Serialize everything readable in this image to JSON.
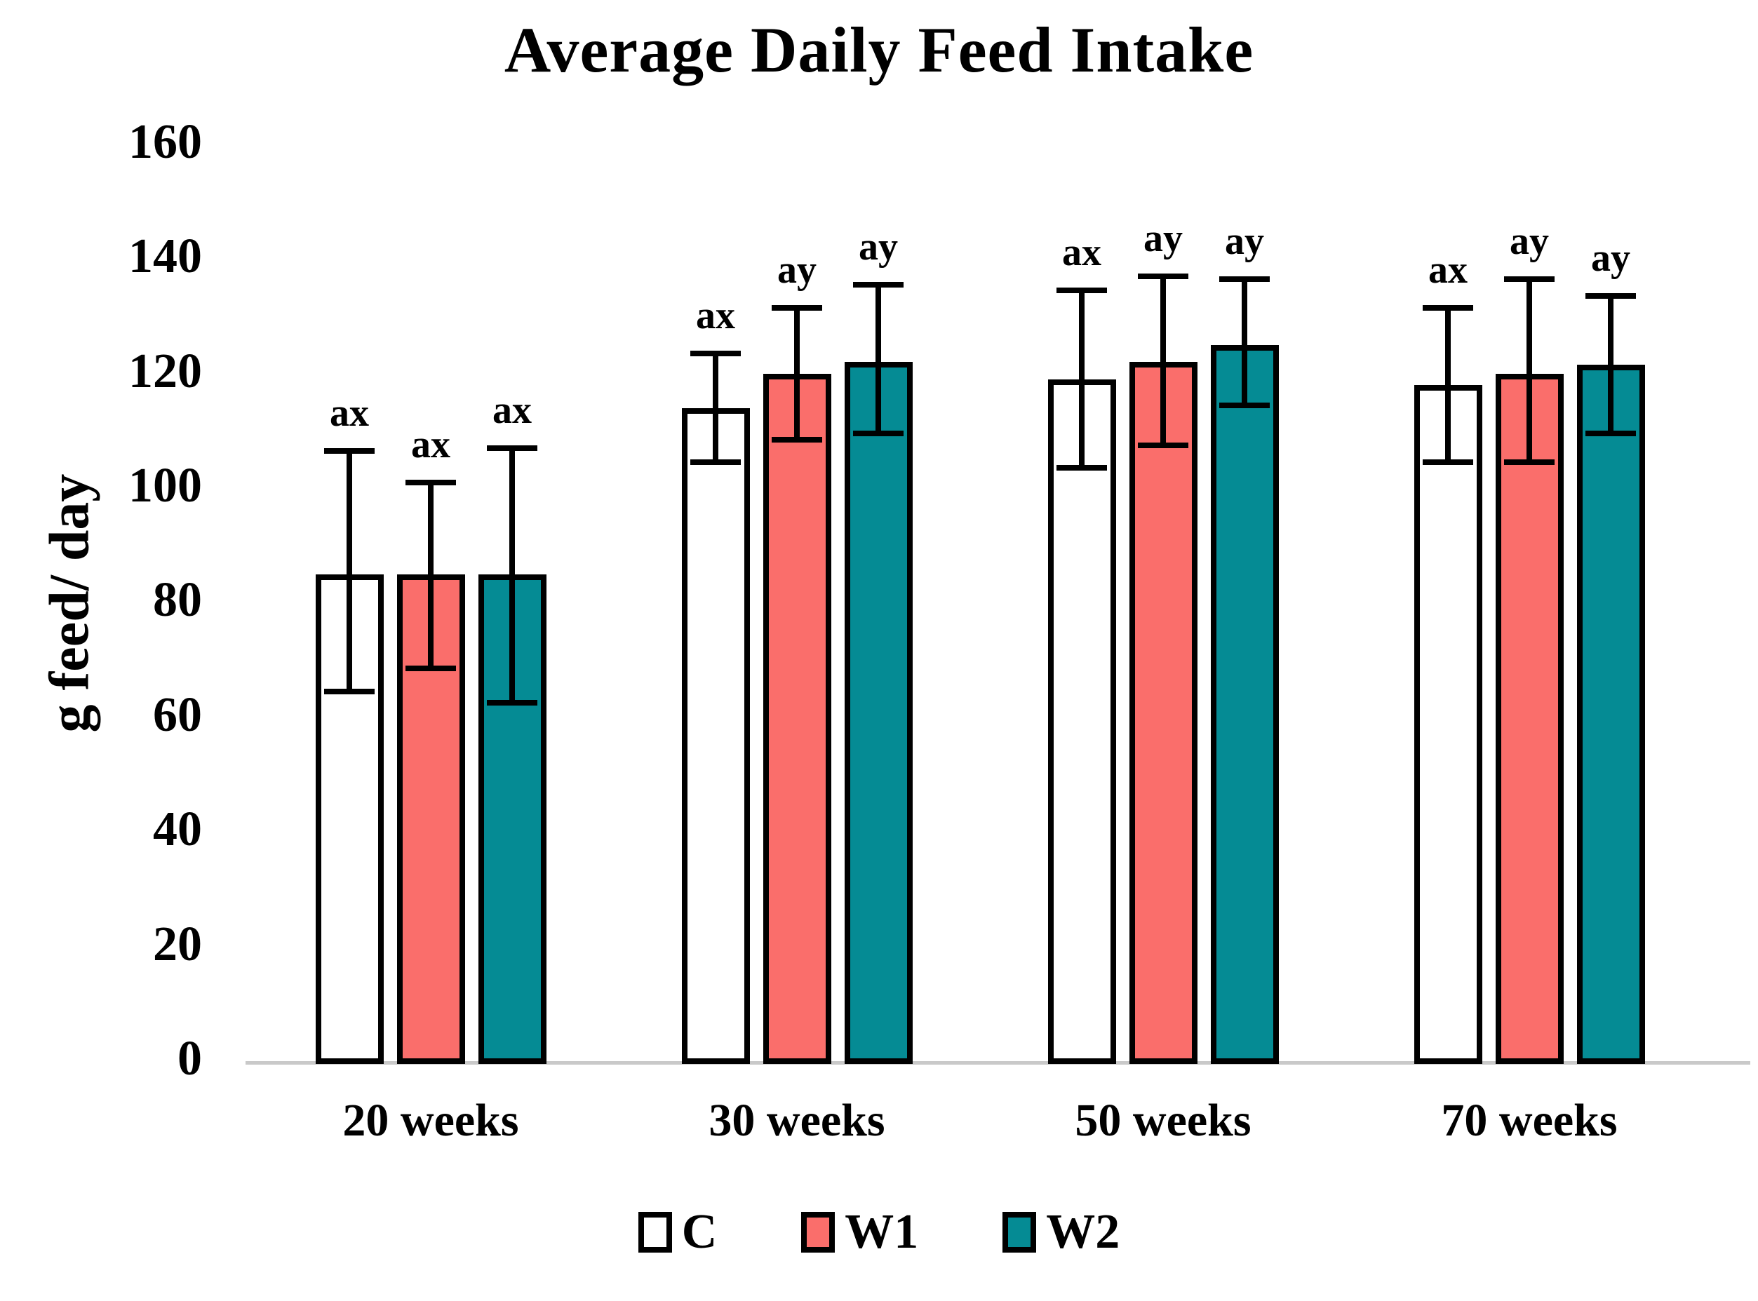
{
  "chart_data": {
    "type": "bar",
    "title": "Average Daily Feed Intake",
    "xlabel": "",
    "ylabel": "g feed/ day",
    "ylim": [
      0,
      160
    ],
    "yticks": [
      0,
      20,
      40,
      60,
      80,
      100,
      120,
      140,
      160
    ],
    "grid": false,
    "legend_position": "bottom",
    "categories": [
      "20 weeks",
      "30 weeks",
      "50 weeks",
      "70 weeks"
    ],
    "series": [
      {
        "name": "C",
        "color": "#ffffff",
        "values": [
          85,
          114,
          119,
          118
        ],
        "err_top": [
          107,
          124,
          135,
          132
        ],
        "err_bot": [
          64,
          104,
          103,
          104
        ],
        "sig": [
          "ax",
          "ax",
          "ax",
          "ax"
        ]
      },
      {
        "name": "W1",
        "color": "#fa6e6b",
        "values": [
          85,
          120,
          122,
          120
        ],
        "err_top": [
          101.5,
          132,
          137.5,
          137
        ],
        "err_bot": [
          68,
          108,
          107,
          104
        ],
        "sig": [
          "ax",
          "ay",
          "ay",
          "ay"
        ]
      },
      {
        "name": "W2",
        "color": "#058b94",
        "values": [
          85,
          122,
          125,
          121.5
        ],
        "err_top": [
          107.5,
          136,
          137,
          134
        ],
        "err_bot": [
          62,
          109,
          114,
          109
        ],
        "sig": [
          "ax",
          "ay",
          "ay",
          "ay"
        ]
      }
    ],
    "annotation_note_colors": {
      "axis_line": "#c9c9c9",
      "bar_border": "#000000"
    }
  }
}
